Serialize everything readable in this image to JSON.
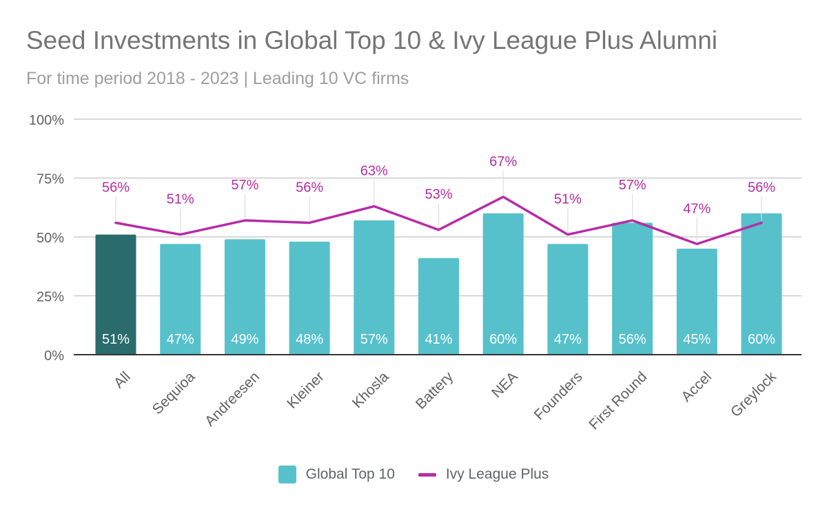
{
  "title": "Seed Investments in Global Top 10 & Ivy League Plus Alumni",
  "subtitle": "For time period 2018 - 2023 | Leading 10 VC firms",
  "colors": {
    "bar": "#56c1cb",
    "bar_highlight": "#2a6b6e",
    "line": "#b82ba6",
    "grid": "#cccccc",
    "axis": "#333333",
    "tick_text": "#616161"
  },
  "legend": [
    {
      "name": "Global Top 10",
      "kind": "bar"
    },
    {
      "name": "Ivy League Plus",
      "kind": "line"
    }
  ],
  "chart_data": {
    "type": "bar",
    "categories": [
      "All",
      "Sequioa",
      "Andreesen",
      "Kleiner",
      "Khosla",
      "Battery",
      "NEA",
      "Founders",
      "First Round",
      "Accel",
      "Greylock"
    ],
    "series": [
      {
        "name": "Global Top 10",
        "type": "bar",
        "values": [
          51,
          47,
          49,
          48,
          57,
          41,
          60,
          47,
          56,
          45,
          60
        ],
        "labels": [
          "51%",
          "47%",
          "49%",
          "48%",
          "57%",
          "41%",
          "60%",
          "47%",
          "56%",
          "45%",
          "60%"
        ]
      },
      {
        "name": "Ivy League Plus",
        "type": "line",
        "values": [
          56,
          51,
          57,
          56,
          63,
          53,
          67,
          51,
          57,
          47,
          56
        ],
        "labels": [
          "56%",
          "51%",
          "57%",
          "56%",
          "63%",
          "53%",
          "67%",
          "51%",
          "57%",
          "47%",
          "56%"
        ]
      }
    ],
    "yticks": [
      "0%",
      "25%",
      "50%",
      "75%",
      "100%"
    ],
    "ylim": [
      0,
      100
    ],
    "grid": true,
    "legend_position": "bottom"
  }
}
